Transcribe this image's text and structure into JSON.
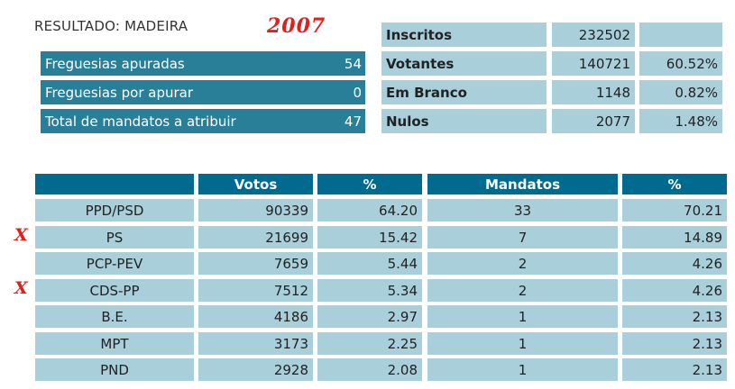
{
  "header": {
    "title": "RESULTADO: MADEIRA",
    "year": "2007"
  },
  "summary_left": [
    {
      "label": "Freguesias apuradas",
      "value": "54"
    },
    {
      "label": "Freguesias por apurar",
      "value": "0"
    },
    {
      "label": "Total de mandatos a atribuir",
      "value": "47"
    }
  ],
  "summary_right": [
    {
      "label": "Inscritos",
      "value": "232502",
      "pct": ""
    },
    {
      "label": "Votantes",
      "value": "140721",
      "pct": "60.52%"
    },
    {
      "label": "Em Branco",
      "value": "1148",
      "pct": "0.82%"
    },
    {
      "label": "Nulos",
      "value": "2077",
      "pct": "1.48%"
    }
  ],
  "results": {
    "headers": {
      "party": "",
      "votes": "Votos",
      "votes_pct": "%",
      "seats": "Mandatos",
      "seats_pct": "%"
    },
    "rows": [
      {
        "party": "PPD/PSD",
        "votes": "90339",
        "votes_pct": "64.20",
        "seats": "33",
        "seats_pct": "70.21",
        "marked": false
      },
      {
        "party": "PS",
        "votes": "21699",
        "votes_pct": "15.42",
        "seats": "7",
        "seats_pct": "14.89",
        "marked": true
      },
      {
        "party": "PCP-PEV",
        "votes": "7659",
        "votes_pct": "5.44",
        "seats": "2",
        "seats_pct": "4.26",
        "marked": false
      },
      {
        "party": "CDS-PP",
        "votes": "7512",
        "votes_pct": "5.34",
        "seats": "2",
        "seats_pct": "4.26",
        "marked": true
      },
      {
        "party": "B.E.",
        "votes": "4186",
        "votes_pct": "2.97",
        "seats": "1",
        "seats_pct": "2.13",
        "marked": false
      },
      {
        "party": "MPT",
        "votes": "3173",
        "votes_pct": "2.25",
        "seats": "1",
        "seats_pct": "2.13",
        "marked": false
      },
      {
        "party": "PND",
        "votes": "2928",
        "votes_pct": "2.08",
        "seats": "1",
        "seats_pct": "2.13",
        "marked": false
      }
    ]
  },
  "annotations": {
    "mark_symbol": "X",
    "mark_color": "#e0201c"
  },
  "colors": {
    "bar_dark": "#2a7f98",
    "header": "#006b8f",
    "cell": "#a9cfda"
  }
}
